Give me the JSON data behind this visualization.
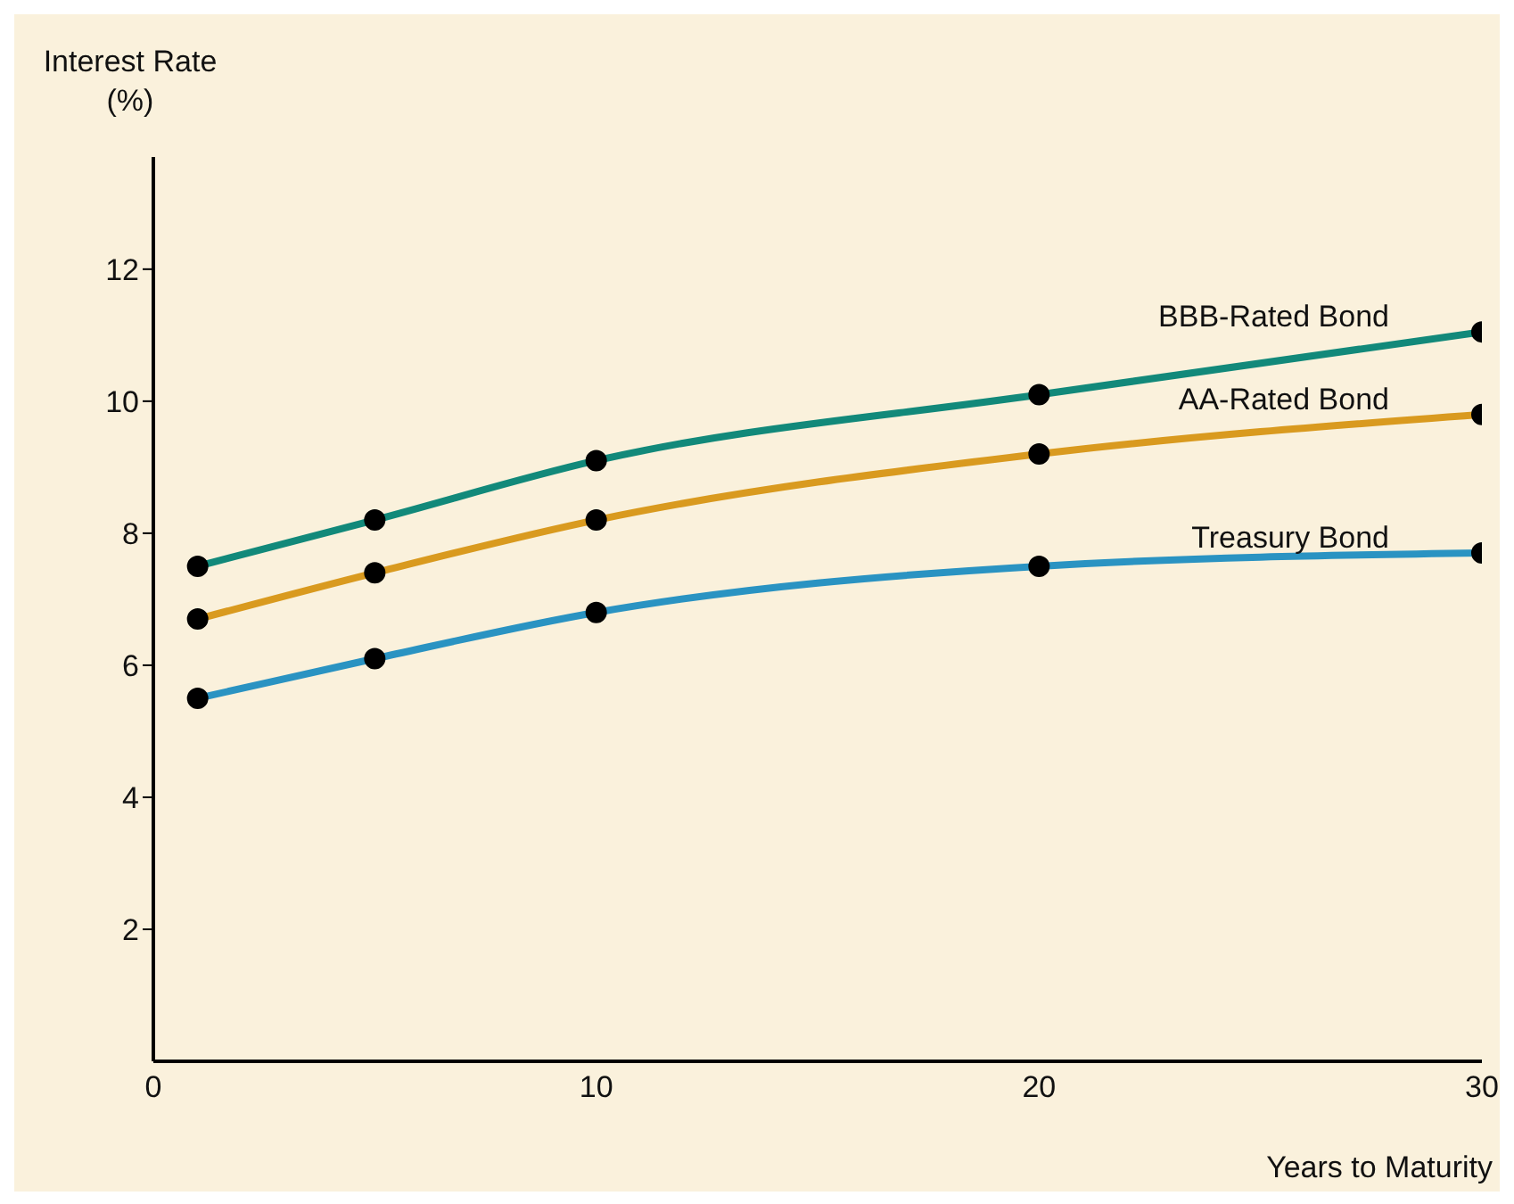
{
  "chart_data": {
    "type": "line",
    "ylabel": "Interest Rate (%)",
    "xlabel": "Years to Maturity",
    "x": [
      1,
      5,
      10,
      20,
      30
    ],
    "series": [
      {
        "name": "BBB-Rated Bond",
        "color": "#12897a",
        "values": [
          7.5,
          8.2,
          9.1,
          10.1,
          11.05
        ]
      },
      {
        "name": "AA-Rated Bond",
        "color": "#d99a1f",
        "values": [
          6.7,
          7.4,
          8.2,
          9.2,
          9.8
        ]
      },
      {
        "name": "Treasury Bond",
        "color": "#2a93c2",
        "values": [
          5.5,
          6.1,
          6.8,
          7.5,
          7.7
        ]
      }
    ],
    "xlim": [
      0,
      30
    ],
    "xticks": [
      0,
      10,
      20,
      30
    ],
    "ylim": [
      0,
      13.7
    ],
    "yticks": [
      2,
      4,
      6,
      8,
      10,
      12
    ],
    "grid": false,
    "legend": false,
    "marker": "circle",
    "line_style": "solid"
  }
}
